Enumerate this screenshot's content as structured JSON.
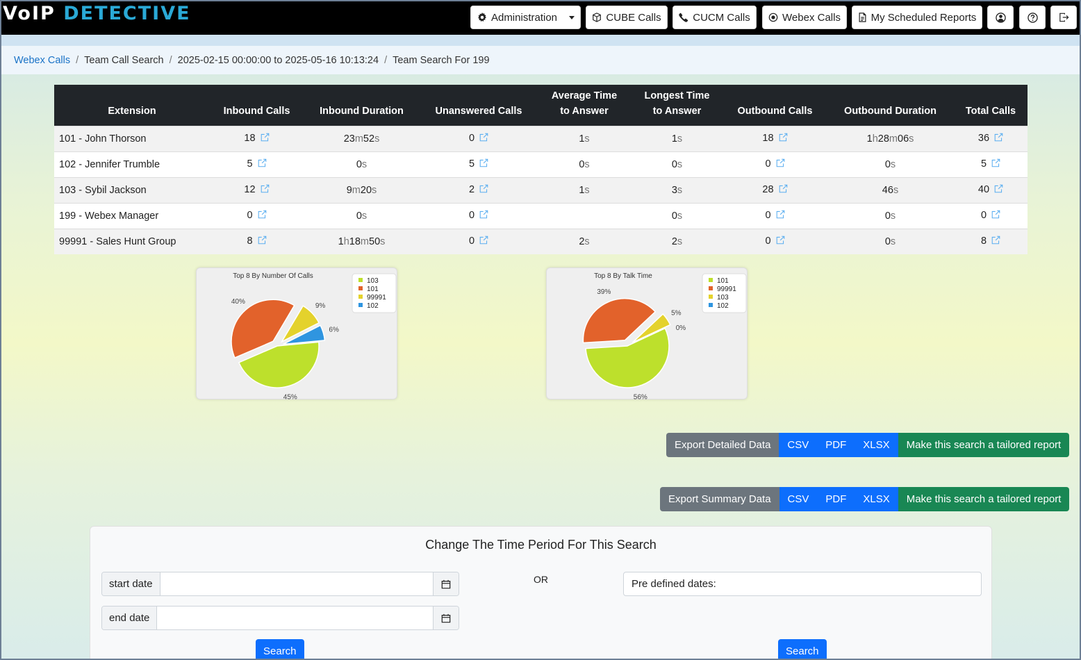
{
  "brand": {
    "part1": "VoIP",
    "part2": "DETECTIVE"
  },
  "nav": {
    "administration": "Administration",
    "cube_calls": "CUBE Calls",
    "cucm_calls": "CUCM Calls",
    "webex_calls": "Webex Calls",
    "scheduled_reports": "My Scheduled Reports"
  },
  "breadcrumb": [
    "Webex Calls",
    "Team Call Search",
    "2025-02-15 00:00:00 to 2025-05-16 10:13:24",
    "Team Search For 199"
  ],
  "table": {
    "columns": [
      {
        "line1": "",
        "line2": "Extension"
      },
      {
        "line1": "",
        "line2": "Inbound Calls"
      },
      {
        "line1": "",
        "line2": "Inbound Duration"
      },
      {
        "line1": "",
        "line2": "Unanswered Calls"
      },
      {
        "line1": "Average Time",
        "line2": "to Answer"
      },
      {
        "line1": "Longest Time",
        "line2": "to Answer"
      },
      {
        "line1": "",
        "line2": "Outbound Calls"
      },
      {
        "line1": "",
        "line2": "Outbound Duration"
      },
      {
        "line1": "",
        "line2": "Total Calls"
      }
    ],
    "rows": [
      {
        "ext": "101 - John Thorson",
        "inbound": "18",
        "inbound_dur": [
          [
            "23",
            "m"
          ],
          [
            "52",
            "s"
          ]
        ],
        "unanswered": "0",
        "avg": [
          [
            "1",
            "s"
          ]
        ],
        "longest": [
          [
            "1",
            "s"
          ]
        ],
        "outbound": "18",
        "outbound_dur": [
          [
            "1",
            "h"
          ],
          [
            "28",
            "m"
          ],
          [
            "06",
            "s"
          ]
        ],
        "total": "36"
      },
      {
        "ext": "102 - Jennifer Trumble",
        "inbound": "5",
        "inbound_dur": [
          [
            "0",
            "s"
          ]
        ],
        "unanswered": "5",
        "avg": [
          [
            "0",
            "s"
          ]
        ],
        "longest": [
          [
            "0",
            "s"
          ]
        ],
        "outbound": "0",
        "outbound_dur": [
          [
            "0",
            "s"
          ]
        ],
        "total": "5"
      },
      {
        "ext": "103 - Sybil Jackson",
        "inbound": "12",
        "inbound_dur": [
          [
            "9",
            "m"
          ],
          [
            "20",
            "s"
          ]
        ],
        "unanswered": "2",
        "avg": [
          [
            "1",
            "s"
          ]
        ],
        "longest": [
          [
            "3",
            "s"
          ]
        ],
        "outbound": "28",
        "outbound_dur": [
          [
            "46",
            "s"
          ]
        ],
        "total": "40"
      },
      {
        "ext": "199 - Webex Manager",
        "inbound": "0",
        "inbound_dur": [
          [
            "0",
            "s"
          ]
        ],
        "unanswered": "0",
        "avg": [],
        "longest": [
          [
            "0",
            "s"
          ]
        ],
        "outbound": "0",
        "outbound_dur": [
          [
            "0",
            "s"
          ]
        ],
        "total": "0"
      },
      {
        "ext": "99991 - Sales Hunt Group",
        "inbound": "8",
        "inbound_dur": [
          [
            "1",
            "h"
          ],
          [
            "18",
            "m"
          ],
          [
            "50",
            "s"
          ]
        ],
        "unanswered": "0",
        "avg": [
          [
            "2",
            "s"
          ]
        ],
        "longest": [
          [
            "2",
            "s"
          ]
        ],
        "outbound": "0",
        "outbound_dur": [
          [
            "0",
            "s"
          ]
        ],
        "total": "8"
      }
    ]
  },
  "pies": [
    {
      "title": "Top 8 By Number Of Calls",
      "slices": [
        {
          "name": "103",
          "pct": 45,
          "label": "45%",
          "color": "#bde02c"
        },
        {
          "name": "101",
          "pct": 40,
          "label": "40%",
          "color": "#e2622b"
        },
        {
          "name": "99991",
          "pct": 9,
          "label": "9%",
          "color": "#e4d22c"
        },
        {
          "name": "102",
          "pct": 6,
          "label": "6%",
          "color": "#2f95e0"
        }
      ]
    },
    {
      "title": "Top 8 By Talk Time",
      "slices": [
        {
          "name": "101",
          "pct": 56,
          "label": "56%",
          "color": "#bde02c"
        },
        {
          "name": "99991",
          "pct": 39,
          "label": "39%",
          "color": "#e2622b"
        },
        {
          "name": "103",
          "pct": 5,
          "label": "5%",
          "color": "#e4d22c"
        },
        {
          "name": "102",
          "pct": 0,
          "label": "0%",
          "color": "#2f95e0"
        }
      ]
    }
  ],
  "export_detailed": {
    "label": "Export Detailed Data",
    "csv": "CSV",
    "pdf": "PDF",
    "xlsx": "XLSX",
    "tailor": "Make this search a tailored report"
  },
  "export_summary": {
    "label": "Export Summary Data",
    "csv": "CSV",
    "pdf": "PDF",
    "xlsx": "XLSX",
    "tailor": "Make this search a tailored report"
  },
  "time_period": {
    "title": "Change The Time Period For This Search",
    "start_label": "start date",
    "end_label": "end date",
    "or": "OR",
    "predefined": "Pre defined dates:",
    "search": "Search"
  }
}
